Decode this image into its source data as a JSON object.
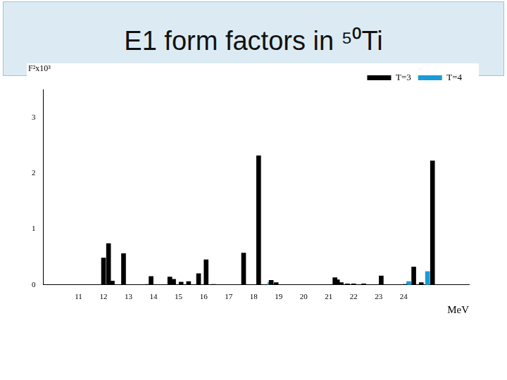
{
  "chart_data": {
    "type": "bar",
    "title": "E1 form factors in ⁵⁰Ti",
    "x_label": "MeV",
    "y_label": "F²x10³",
    "series": [
      {
        "name": "T=3",
        "color": "#000000",
        "x": [
          12.0,
          12.2,
          12.35,
          12.8,
          13.75,
          13.9,
          14.65,
          14.8,
          15.1,
          15.4,
          15.8,
          16.1,
          16.4,
          17.6,
          18.2,
          18.7,
          18.9,
          21.25,
          21.35,
          21.5,
          21.75,
          22.0,
          22.4,
          23.1,
          24.05,
          24.4,
          24.7,
          25.15
        ],
        "values": [
          0.48,
          0.74,
          0.07,
          0.56,
          0.01,
          0.15,
          0.14,
          0.1,
          0.05,
          0.06,
          0.2,
          0.45,
          0.01,
          0.57,
          2.31,
          0.08,
          0.04,
          0.13,
          0.09,
          0.04,
          0.02,
          0.02,
          0.02,
          0.16,
          0.01,
          0.32,
          0.04,
          2.22
        ]
      },
      {
        "name": "T=4",
        "color": "#1a9bd7",
        "x": [
          18.65,
          21.3,
          21.4,
          24.2,
          24.95
        ],
        "values": [
          0.04,
          0.04,
          0.03,
          0.06,
          0.24
        ]
      }
    ],
    "xlim": [
      10.2,
      26
    ],
    "xticks": [
      11,
      12,
      13,
      14,
      15,
      16,
      17,
      18,
      19,
      20,
      21,
      22,
      23,
      24
    ],
    "ylim": [
      0,
      3.5
    ],
    "yticks": [
      0,
      1,
      2,
      3
    ],
    "grid": false,
    "legend": "upper right"
  }
}
